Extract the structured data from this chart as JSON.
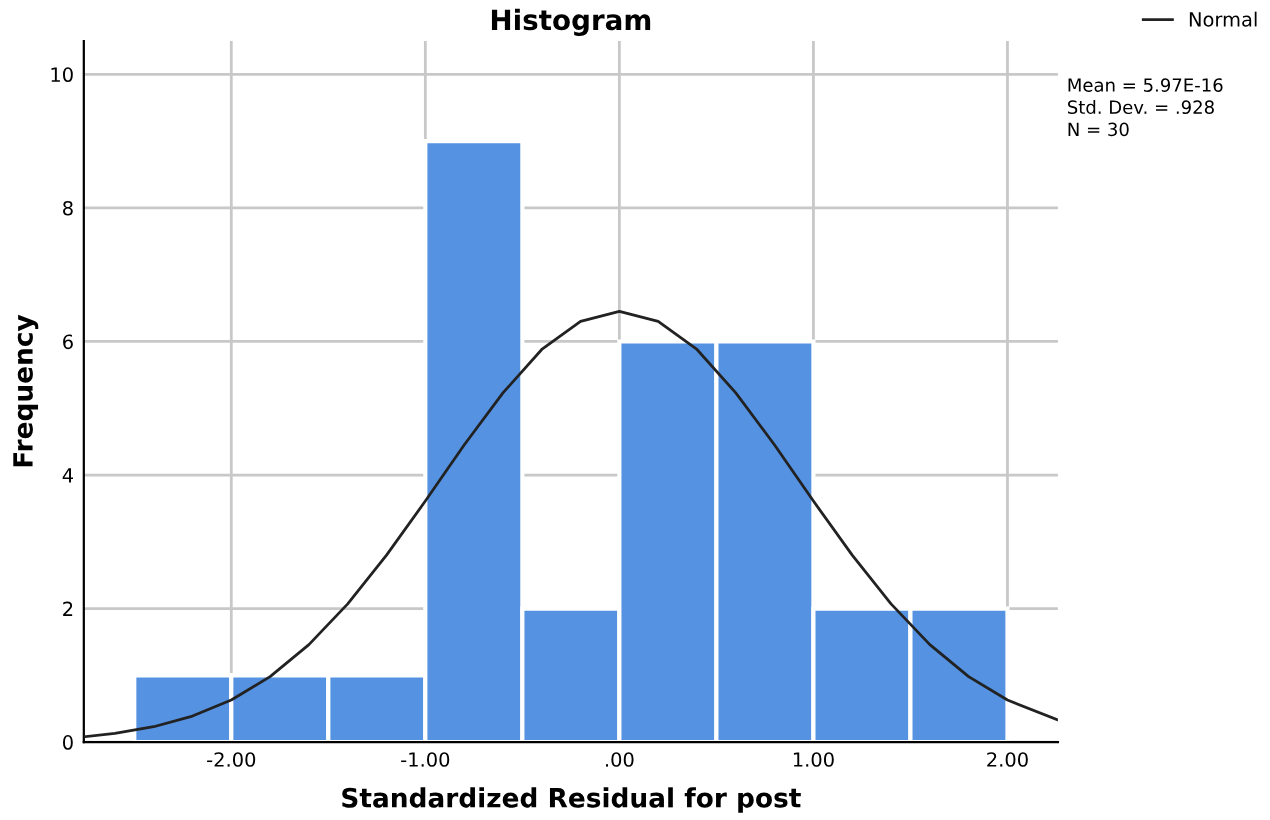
{
  "chart_data": {
    "type": "histogram",
    "title": "Histogram",
    "xlabel": "Standardized Residual for post",
    "ylabel": "Frequency",
    "bins": [
      -2.5,
      -2.0,
      -1.5,
      -1.0,
      -0.5,
      0.0,
      0.5,
      1.0,
      1.5,
      2.0
    ],
    "values": [
      1,
      1,
      1,
      9,
      2,
      6,
      6,
      2,
      2
    ],
    "color": "#5592e2",
    "series": [
      {
        "name": "Normal",
        "type": "line",
        "color": "#222222",
        "x": [
          -2.76,
          -2.6,
          -2.4,
          -2.2,
          -2.0,
          -1.8,
          -1.6,
          -1.4,
          -1.2,
          -1.0,
          -0.8,
          -0.6,
          -0.4,
          -0.2,
          0.0,
          0.2,
          0.4,
          0.6,
          0.8,
          1.0,
          1.2,
          1.4,
          1.6,
          1.8,
          2.0,
          2.26
        ],
        "values": [
          0.08,
          0.13,
          0.23,
          0.39,
          0.63,
          0.98,
          1.46,
          2.07,
          2.8,
          3.61,
          4.45,
          5.23,
          5.88,
          6.3,
          6.45,
          6.3,
          5.88,
          5.23,
          4.45,
          3.61,
          2.8,
          2.07,
          1.46,
          0.98,
          0.63,
          0.33
        ]
      }
    ],
    "xlim": [
      -2.76,
      2.26
    ],
    "ylim": [
      0,
      10.5
    ],
    "xticks": [
      {
        "value": -2,
        "label": "-2.00"
      },
      {
        "value": -1,
        "label": "-1.00"
      },
      {
        "value": 0,
        "label": ".00"
      },
      {
        "value": 1,
        "label": "1.00"
      },
      {
        "value": 2,
        "label": "2.00"
      }
    ],
    "yticks": [
      0,
      2,
      4,
      6,
      8,
      10
    ],
    "grid": true,
    "legend": "top right",
    "annotations": [
      "Mean = 5.97E-16",
      "Std. Dev. = .928",
      "N = 30"
    ]
  }
}
